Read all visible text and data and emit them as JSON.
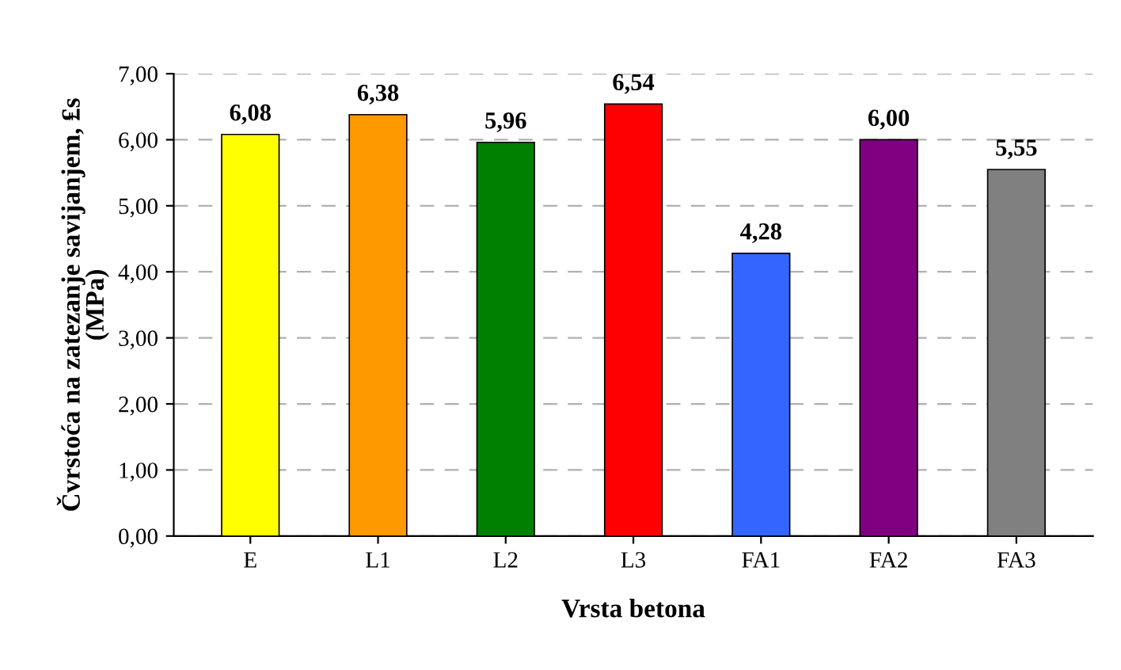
{
  "chart_data": {
    "type": "bar",
    "xlabel": "Vrsta betona",
    "ylabel": "Čvrstoća na zatezanje savijanjem, ₤s\n(MPa)",
    "categories": [
      "E",
      "L1",
      "L2",
      "L3",
      "FA1",
      "FA2",
      "FA3"
    ],
    "values": [
      6.08,
      6.38,
      5.96,
      6.54,
      4.28,
      6.0,
      5.55
    ],
    "value_labels": [
      "6,08",
      "6,38",
      "5,96",
      "6,54",
      "4,28",
      "6,00",
      "5,55"
    ],
    "colors": [
      "#ffff00",
      "#ff9900",
      "#008000",
      "#ff0000",
      "#3366ff",
      "#800080",
      "#808080"
    ],
    "ylim": [
      0,
      7
    ],
    "yticks": [
      {
        "value": 0,
        "label": "0,00"
      },
      {
        "value": 1,
        "label": "1,00"
      },
      {
        "value": 2,
        "label": "2,00"
      },
      {
        "value": 3,
        "label": "3,00"
      },
      {
        "value": 4,
        "label": "4,00"
      },
      {
        "value": 5,
        "label": "5,00"
      },
      {
        "value": 6,
        "label": "6,00"
      },
      {
        "value": 7,
        "label": "7,00"
      }
    ],
    "grid": "y",
    "line_style": "dashed"
  }
}
